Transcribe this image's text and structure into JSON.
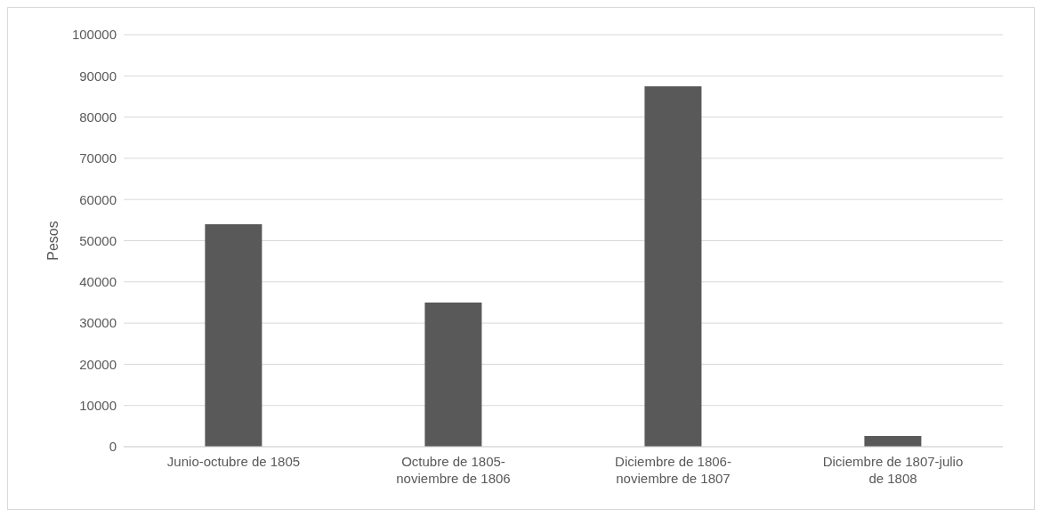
{
  "chart_data": {
    "type": "bar",
    "ylabel": "Pesos",
    "categories": [
      "Junio-octubre de 1805",
      "Octubre de 1805-noviembre de 1806",
      "Diciembre de 1806-noviembre de 1807",
      "Diciembre de 1807-julio de 1808"
    ],
    "values": [
      54000,
      35000,
      87500,
      2600
    ],
    "color": "#595959",
    "ylim": [
      0,
      100000
    ],
    "yticks": [
      0,
      10000,
      20000,
      30000,
      40000,
      50000,
      60000,
      70000,
      80000,
      90000,
      100000
    ],
    "grid": "y",
    "legend": false
  }
}
